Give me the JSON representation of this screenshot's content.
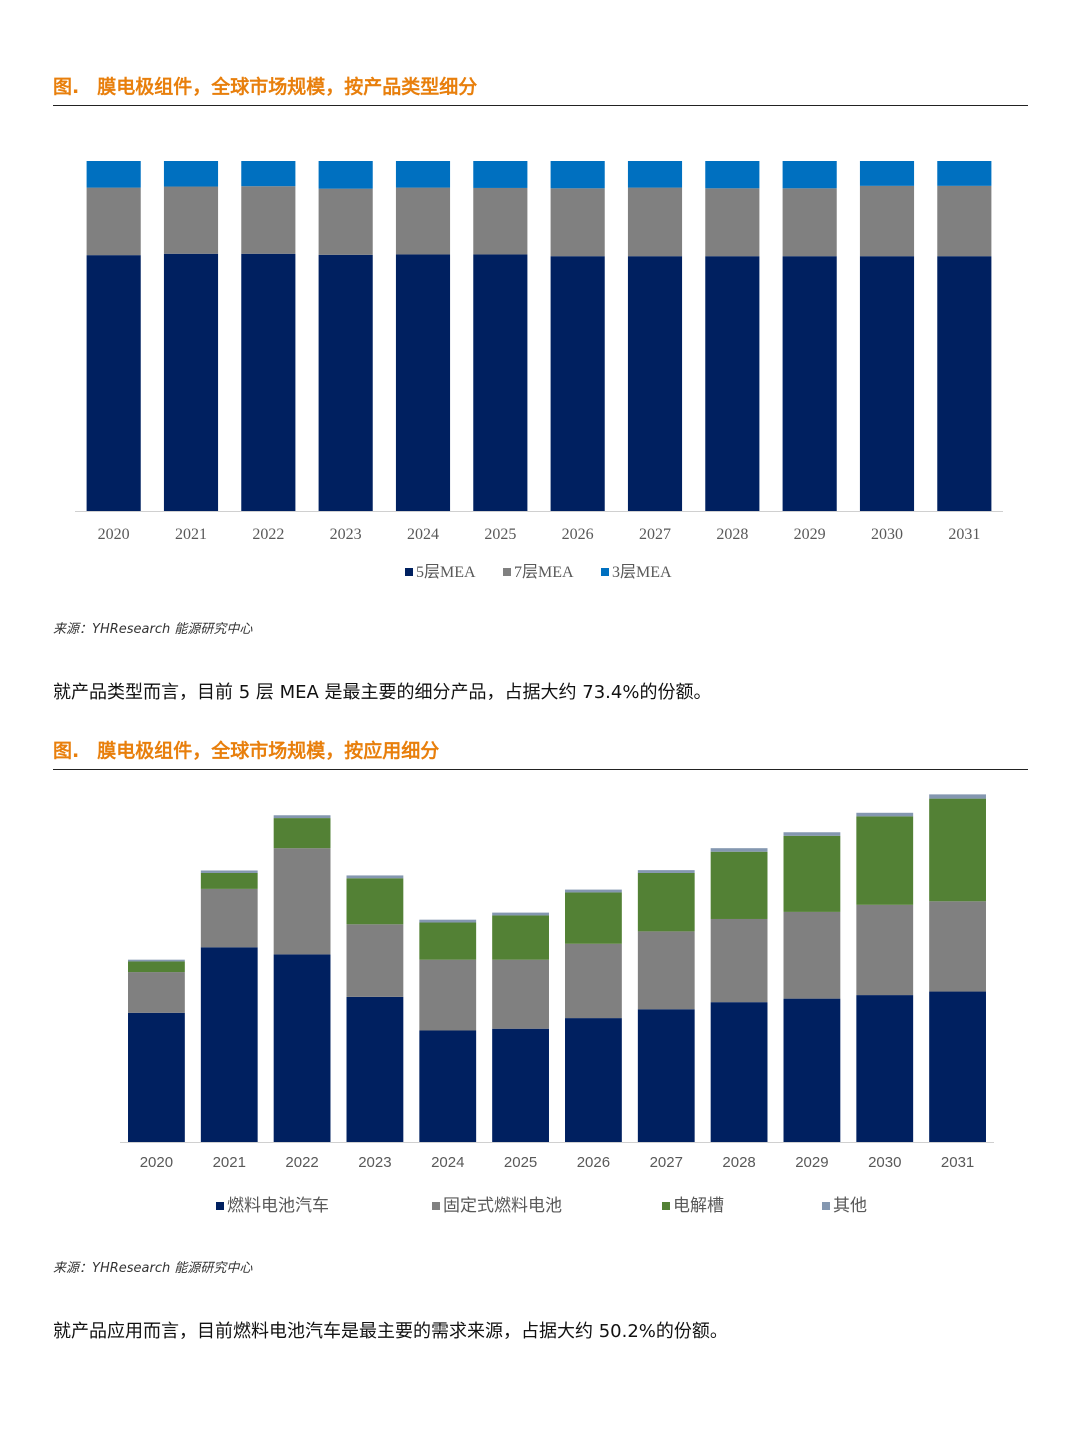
{
  "figure1": {
    "title_prefix": "图.",
    "title": "膜电极组件，全球市场规模，按产品类型细分",
    "source": "来源：YHResearch 能源研究中心"
  },
  "paragraph1": "就产品类型而言，目前 5 层 MEA 是最主要的细分产品，占据大约 73.4%的份额。",
  "figure2": {
    "title_prefix": "图.",
    "title": "膜电极组件，全球市场规模，按应用细分",
    "source": "来源：YHResearch 能源研究中心"
  },
  "paragraph2": "就产品应用而言，目前燃料电池汽车是最主要的需求来源，占据大约 50.2%的份额。",
  "chart_data": [
    {
      "type": "bar",
      "stacked": true,
      "percent_stacked": true,
      "categories": [
        "2020",
        "2021",
        "2022",
        "2023",
        "2024",
        "2025",
        "2026",
        "2027",
        "2028",
        "2029",
        "2030",
        "2031"
      ],
      "series": [
        {
          "name": "5层MEA",
          "color": "#002060",
          "values": [
            73.1,
            73.5,
            73.5,
            73.2,
            73.3,
            73.3,
            72.8,
            72.8,
            72.8,
            72.8,
            72.8,
            72.8
          ]
        },
        {
          "name": "7层MEA",
          "color": "#808080",
          "values": [
            19.3,
            19.2,
            19.3,
            18.9,
            19.1,
            19.0,
            19.4,
            19.6,
            19.4,
            19.4,
            20.1,
            20.1
          ]
        },
        {
          "name": "3层MEA",
          "color": "#0070c0",
          "values": [
            7.6,
            7.3,
            7.2,
            7.9,
            7.6,
            7.7,
            7.8,
            7.6,
            7.8,
            7.8,
            7.1,
            7.1
          ]
        }
      ],
      "ylim": [
        0,
        100
      ],
      "grid": false,
      "legend": "bottom"
    },
    {
      "type": "bar",
      "stacked": true,
      "categories": [
        "2020",
        "2021",
        "2022",
        "2023",
        "2024",
        "2025",
        "2026",
        "2027",
        "2028",
        "2029",
        "2030",
        "2031"
      ],
      "series": [
        {
          "name": "燃料电池汽车",
          "color": "#002060",
          "values": [
            36.5,
            55.0,
            53.0,
            41.0,
            31.5,
            32.0,
            35.0,
            37.5,
            39.5,
            40.5,
            41.5,
            42.5
          ]
        },
        {
          "name": "固定式燃料电池",
          "color": "#808080",
          "values": [
            11.5,
            16.5,
            30.0,
            20.5,
            20.0,
            19.5,
            21.0,
            22.0,
            23.5,
            24.5,
            25.5,
            25.5
          ]
        },
        {
          "name": "电解槽",
          "color": "#538135",
          "values": [
            3.0,
            4.5,
            8.5,
            13.0,
            10.5,
            12.5,
            14.5,
            16.5,
            19.0,
            21.5,
            25.0,
            29.0
          ]
        },
        {
          "name": "其他",
          "color": "#8497b0",
          "values": [
            0.5,
            0.7,
            0.8,
            0.8,
            0.8,
            0.8,
            0.8,
            0.8,
            1.0,
            1.0,
            1.0,
            1.2
          ]
        }
      ],
      "ylim": [
        0,
        100
      ],
      "grid": false,
      "legend": "bottom"
    }
  ]
}
